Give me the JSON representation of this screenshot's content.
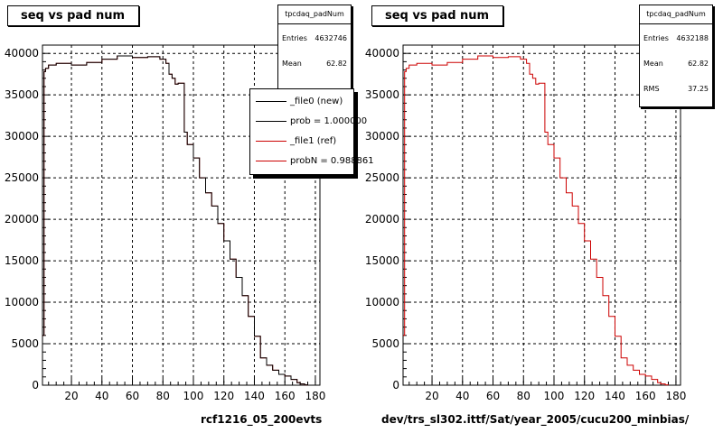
{
  "left_panel": {
    "title": "seq vs pad num",
    "stats": {
      "name": "tpcdaq_padNum",
      "entries_label": "Entries",
      "entries": "4632746",
      "mean_label": "Mean",
      "mean": "62.82"
    },
    "legend": [
      {
        "label": "_file0 (new)",
        "color": "#000000"
      },
      {
        "label": "prob = 1.000000",
        "color": "#000000"
      },
      {
        "label": "_file1 (ref)",
        "color": "#cc0000"
      },
      {
        "label": "probN = 0.988861",
        "color": "#cc0000"
      }
    ],
    "footer": "rcf1216_05_200evts"
  },
  "right_panel": {
    "title": "seq vs pad num",
    "stats": {
      "name": "tpcdaq_padNum",
      "entries_label": "Entries",
      "entries": "4632188",
      "mean_label": "Mean",
      "mean": "62.82",
      "rms_label": "RMS",
      "rms": "37.25"
    },
    "footer": "dev/trs_sl302.ittf/Sat/year_2005/cucu200_minbias/"
  },
  "chart_data": [
    {
      "type": "line",
      "title": "seq vs pad num",
      "xlim": [
        1,
        183
      ],
      "ylim": [
        0,
        41000
      ],
      "x_ticks": [
        20,
        40,
        60,
        80,
        100,
        120,
        140,
        160,
        180
      ],
      "y_ticks": [
        0,
        5000,
        10000,
        15000,
        20000,
        25000,
        30000,
        35000,
        40000
      ],
      "grid": true,
      "legend_position": "top-right",
      "series": [
        {
          "name": "_file1 (ref)",
          "color": "#cc0000",
          "x": [
            1,
            2,
            3,
            5,
            10,
            20,
            30,
            40,
            50,
            60,
            70,
            78,
            82,
            84,
            86,
            88,
            90,
            94,
            96,
            100,
            104,
            108,
            112,
            116,
            120,
            124,
            128,
            132,
            136,
            140,
            144,
            148,
            152,
            156,
            160,
            164,
            168,
            170,
            173,
            175
          ],
          "y": [
            6000,
            37800,
            38200,
            38600,
            38800,
            38600,
            38900,
            39300,
            39700,
            39500,
            39600,
            39300,
            38800,
            37500,
            37000,
            36300,
            36400,
            30500,
            29000,
            27400,
            25000,
            23200,
            21600,
            19500,
            17400,
            15200,
            13000,
            10800,
            8300,
            5900,
            3300,
            2400,
            1800,
            1300,
            1100,
            700,
            300,
            150,
            40,
            0
          ]
        },
        {
          "name": "_file0 (new)",
          "color": "#000000",
          "x": [
            1,
            2,
            3,
            5,
            10,
            20,
            30,
            40,
            50,
            60,
            70,
            78,
            82,
            84,
            86,
            88,
            90,
            94,
            96,
            100,
            104,
            108,
            112,
            116,
            120,
            124,
            128,
            132,
            136,
            140,
            144,
            148,
            152,
            156,
            160,
            164,
            168,
            170,
            173,
            175
          ],
          "y": [
            6000,
            37800,
            38200,
            38600,
            38800,
            38600,
            38900,
            39300,
            39700,
            39500,
            39600,
            39300,
            38800,
            37500,
            37000,
            36300,
            36400,
            30500,
            29000,
            27400,
            25000,
            23200,
            21600,
            19500,
            17400,
            15200,
            13000,
            10800,
            8300,
            5900,
            3300,
            2400,
            1800,
            1300,
            1100,
            700,
            300,
            150,
            40,
            0
          ]
        }
      ]
    },
    {
      "type": "line",
      "title": "seq vs pad num",
      "xlim": [
        1,
        183
      ],
      "ylim": [
        0,
        41000
      ],
      "x_ticks": [
        20,
        40,
        60,
        80,
        100,
        120,
        140,
        160,
        180
      ],
      "y_ticks": [
        0,
        5000,
        10000,
        15000,
        20000,
        25000,
        30000,
        35000,
        40000
      ],
      "grid": true,
      "series": [
        {
          "color": "#cc0000",
          "x": [
            1,
            2,
            3,
            5,
            10,
            20,
            30,
            40,
            50,
            60,
            70,
            78,
            82,
            84,
            86,
            88,
            90,
            94,
            96,
            100,
            104,
            108,
            112,
            116,
            120,
            124,
            128,
            132,
            136,
            140,
            144,
            148,
            152,
            156,
            160,
            164,
            168,
            170,
            173,
            175
          ],
          "y": [
            6000,
            37800,
            38200,
            38600,
            38800,
            38600,
            38900,
            39300,
            39700,
            39500,
            39600,
            39300,
            38800,
            37500,
            37000,
            36300,
            36400,
            30500,
            29000,
            27400,
            25000,
            23200,
            21600,
            19500,
            17400,
            15200,
            13000,
            10800,
            8300,
            5900,
            3300,
            2400,
            1800,
            1300,
            1100,
            700,
            300,
            150,
            40,
            0
          ]
        }
      ]
    }
  ]
}
